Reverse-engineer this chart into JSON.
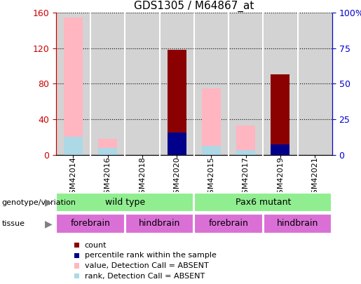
{
  "title": "GDS1305 / M64867_at",
  "samples": [
    "GSM42014",
    "GSM42016",
    "GSM42018",
    "GSM42020",
    "GSM42015",
    "GSM42017",
    "GSM42019",
    "GSM42021"
  ],
  "left_ylim": [
    0,
    160
  ],
  "right_ylim": [
    0,
    100
  ],
  "left_yticks": [
    0,
    40,
    80,
    120,
    160
  ],
  "right_yticks": [
    0,
    25,
    50,
    75,
    100
  ],
  "right_yticklabels": [
    "0",
    "25",
    "50",
    "75",
    "100%"
  ],
  "bars": {
    "count": [
      null,
      null,
      null,
      118,
      null,
      null,
      91,
      null
    ],
    "rank": [
      null,
      null,
      null,
      25,
      null,
      null,
      12,
      null
    ],
    "value_absent": [
      155,
      18,
      null,
      null,
      75,
      33,
      null,
      null
    ],
    "rank_absent": [
      20,
      8,
      null,
      10,
      10,
      5,
      null,
      null
    ]
  },
  "colors": {
    "count": "#8B0000",
    "rank": "#00008B",
    "value_absent": "#FFB6C1",
    "rank_absent": "#ADD8E6",
    "bg_chart": "#D3D3D3",
    "bg_wildtype": "#90EE90",
    "bg_pax6": "#90EE90",
    "bg_forebrain": "#DA70D6",
    "bg_hindbrain": "#DA70D6",
    "left_tick_color": "#CC0000",
    "right_tick_color": "#0000CC",
    "separator": "#808080"
  },
  "legend": [
    {
      "label": "count",
      "color": "#8B0000"
    },
    {
      "label": "percentile rank within the sample",
      "color": "#00008B"
    },
    {
      "label": "value, Detection Call = ABSENT",
      "color": "#FFB6C1"
    },
    {
      "label": "rank, Detection Call = ABSENT",
      "color": "#ADD8E6"
    }
  ],
  "bar_width": 0.55,
  "figsize": [
    5.15,
    4.05
  ],
  "dpi": 100
}
